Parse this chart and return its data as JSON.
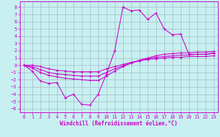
{
  "xlabel": "Windchill (Refroidissement éolien,°C)",
  "bg_color": "#c8f0f0",
  "grid_color": "#a0b8c8",
  "line_color": "#cc00cc",
  "x_ticks": [
    0,
    1,
    2,
    3,
    4,
    5,
    6,
    7,
    8,
    9,
    10,
    11,
    12,
    13,
    14,
    15,
    16,
    17,
    18,
    19,
    20,
    21,
    22,
    23
  ],
  "y_ticks": [
    -6,
    -5,
    -4,
    -3,
    -2,
    -1,
    0,
    1,
    2,
    3,
    4,
    5,
    6,
    7,
    8
  ],
  "xlim": [
    -0.5,
    23.5
  ],
  "ylim": [
    -6.5,
    8.8
  ],
  "main_line_x": [
    0,
    1,
    2,
    3,
    4,
    5,
    6,
    7,
    8,
    9,
    10,
    11,
    12,
    13,
    14,
    15,
    16,
    17,
    18,
    19,
    20,
    21,
    22,
    23
  ],
  "main_line_y": [
    0,
    -0.8,
    -2.2,
    -2.5,
    -2.4,
    -4.5,
    -4.0,
    -5.4,
    -5.5,
    -4.0,
    -1.2,
    2.0,
    8.0,
    7.5,
    7.6,
    6.3,
    7.2,
    5.0,
    4.2,
    4.3,
    1.5,
    1.5,
    1.5,
    1.7
  ],
  "line2_x": [
    0,
    1,
    2,
    3,
    4,
    5,
    6,
    7,
    8,
    9,
    10,
    11,
    12,
    13,
    14,
    15,
    16,
    17,
    18,
    19,
    20,
    21,
    22,
    23
  ],
  "line2_y": [
    0,
    -0.4,
    -1.0,
    -1.4,
    -1.6,
    -1.8,
    -1.9,
    -2.0,
    -2.1,
    -2.1,
    -1.5,
    -0.8,
    -0.2,
    0.3,
    0.7,
    1.0,
    1.3,
    1.5,
    1.6,
    1.7,
    1.7,
    1.8,
    1.8,
    1.9
  ],
  "line3_x": [
    0,
    1,
    2,
    3,
    4,
    5,
    6,
    7,
    8,
    9,
    10,
    11,
    12,
    13,
    14,
    15,
    16,
    17,
    18,
    19,
    20,
    21,
    22,
    23
  ],
  "line3_y": [
    0,
    -0.2,
    -0.6,
    -1.0,
    -1.2,
    -1.3,
    -1.4,
    -1.5,
    -1.5,
    -1.5,
    -1.0,
    -0.5,
    -0.1,
    0.3,
    0.6,
    0.9,
    1.1,
    1.2,
    1.3,
    1.4,
    1.4,
    1.5,
    1.5,
    1.6
  ],
  "line4_x": [
    0,
    1,
    2,
    3,
    4,
    5,
    6,
    7,
    8,
    9,
    10,
    11,
    12,
    13,
    14,
    15,
    16,
    17,
    18,
    19,
    20,
    21,
    22,
    23
  ],
  "line4_y": [
    0,
    0.0,
    -0.2,
    -0.5,
    -0.7,
    -0.8,
    -0.9,
    -0.9,
    -0.9,
    -0.9,
    -0.5,
    -0.2,
    0.1,
    0.4,
    0.6,
    0.8,
    0.9,
    1.0,
    1.1,
    1.1,
    1.2,
    1.2,
    1.2,
    1.3
  ],
  "xlabel_fontsize": 5.5,
  "tick_fontsize": 5.0
}
